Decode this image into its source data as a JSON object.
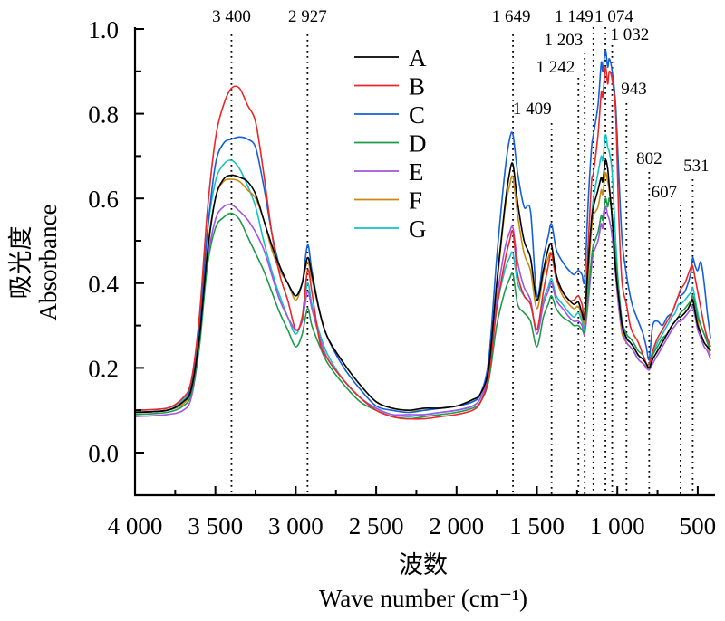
{
  "chart_data": {
    "type": "line",
    "title": "",
    "xlabel_cn": "波数",
    "xlabel": "Wave number (cm⁻¹)",
    "ylabel_cn": "吸光度",
    "ylabel": "Absorbance",
    "xlim": [
      4000,
      410
    ],
    "x_reversed": true,
    "ylim": [
      -0.1,
      1.0
    ],
    "x_ticks": [
      4000,
      3500,
      3000,
      2500,
      2000,
      1500,
      1000,
      500
    ],
    "x_tick_labels": [
      "4 000",
      "3 500",
      "3 000",
      "2 500",
      "2 000",
      "1 500",
      "1 000",
      "500"
    ],
    "y_ticks": [
      0.0,
      0.2,
      0.4,
      0.6,
      0.8,
      1.0
    ],
    "y_tick_labels": [
      "0.0",
      "0.2",
      "0.4",
      "0.6",
      "0.8",
      "1.0"
    ],
    "grid": false,
    "legend_position": "top-center",
    "reference_lines": [
      {
        "x": 3400,
        "label": "3 400"
      },
      {
        "x": 2927,
        "label": "2 927"
      },
      {
        "x": 1649,
        "label": "1 649"
      },
      {
        "x": 1409,
        "label": "1 409"
      },
      {
        "x": 1242,
        "label": "1 242"
      },
      {
        "x": 1203,
        "label": "1 203"
      },
      {
        "x": 1149,
        "label": "1 149"
      },
      {
        "x": 1074,
        "label": "1 074"
      },
      {
        "x": 1032,
        "label": "1 032"
      },
      {
        "x": 943,
        "label": "943"
      },
      {
        "x": 802,
        "label": "802"
      },
      {
        "x": 607,
        "label": "607"
      },
      {
        "x": 531,
        "label": "531"
      }
    ],
    "x": [
      4000,
      3800,
      3700,
      3650,
      3600,
      3550,
      3500,
      3450,
      3400,
      3350,
      3300,
      3250,
      3200,
      3150,
      3100,
      3050,
      3000,
      2960,
      2927,
      2900,
      2850,
      2800,
      2700,
      2600,
      2500,
      2400,
      2300,
      2200,
      2100,
      2000,
      1900,
      1850,
      1800,
      1750,
      1700,
      1670,
      1649,
      1620,
      1580,
      1540,
      1500,
      1460,
      1430,
      1409,
      1380,
      1340,
      1300,
      1270,
      1242,
      1220,
      1203,
      1180,
      1160,
      1149,
      1120,
      1100,
      1090,
      1074,
      1060,
      1050,
      1032,
      1010,
      990,
      970,
      943,
      920,
      900,
      870,
      840,
      820,
      802,
      780,
      750,
      720,
      690,
      660,
      640,
      620,
      607,
      580,
      560,
      540,
      531,
      515,
      500,
      480,
      460,
      440,
      420
    ],
    "series": [
      {
        "name": "A",
        "color": "#000000",
        "values": [
          0.095,
          0.1,
          0.12,
          0.15,
          0.27,
          0.47,
          0.6,
          0.645,
          0.655,
          0.65,
          0.64,
          0.61,
          0.55,
          0.49,
          0.44,
          0.4,
          0.37,
          0.4,
          0.46,
          0.42,
          0.33,
          0.27,
          0.21,
          0.16,
          0.12,
          0.105,
          0.1,
          0.105,
          0.105,
          0.11,
          0.125,
          0.14,
          0.2,
          0.4,
          0.58,
          0.66,
          0.68,
          0.59,
          0.5,
          0.46,
          0.36,
          0.43,
          0.48,
          0.49,
          0.42,
          0.38,
          0.36,
          0.35,
          0.355,
          0.33,
          0.32,
          0.45,
          0.55,
          0.58,
          0.62,
          0.65,
          0.64,
          0.69,
          0.67,
          0.63,
          0.55,
          0.43,
          0.36,
          0.3,
          0.27,
          0.26,
          0.25,
          0.23,
          0.22,
          0.21,
          0.2,
          0.22,
          0.24,
          0.26,
          0.28,
          0.3,
          0.31,
          0.32,
          0.32,
          0.33,
          0.34,
          0.355,
          0.36,
          0.33,
          0.3,
          0.28,
          0.26,
          0.25,
          0.24
        ]
      },
      {
        "name": "B",
        "color": "#e8272a",
        "values": [
          0.1,
          0.105,
          0.13,
          0.17,
          0.32,
          0.57,
          0.74,
          0.82,
          0.86,
          0.86,
          0.82,
          0.78,
          0.66,
          0.52,
          0.42,
          0.36,
          0.29,
          0.32,
          0.43,
          0.38,
          0.26,
          0.22,
          0.17,
          0.13,
          0.1,
          0.085,
          0.08,
          0.08,
          0.085,
          0.09,
          0.1,
          0.12,
          0.18,
          0.34,
          0.45,
          0.5,
          0.52,
          0.42,
          0.37,
          0.35,
          0.29,
          0.38,
          0.44,
          0.47,
          0.41,
          0.38,
          0.36,
          0.36,
          0.37,
          0.35,
          0.33,
          0.5,
          0.64,
          0.66,
          0.75,
          0.85,
          0.84,
          0.91,
          0.87,
          0.9,
          0.88,
          0.8,
          0.55,
          0.4,
          0.35,
          0.3,
          0.28,
          0.26,
          0.23,
          0.21,
          0.21,
          0.24,
          0.27,
          0.29,
          0.31,
          0.33,
          0.35,
          0.37,
          0.385,
          0.4,
          0.42,
          0.44,
          0.44,
          0.41,
          0.38,
          0.34,
          0.3,
          0.27,
          0.25
        ]
      },
      {
        "name": "C",
        "color": "#1560d4",
        "values": [
          0.095,
          0.1,
          0.12,
          0.16,
          0.29,
          0.52,
          0.68,
          0.73,
          0.74,
          0.745,
          0.74,
          0.72,
          0.63,
          0.52,
          0.44,
          0.4,
          0.37,
          0.4,
          0.49,
          0.43,
          0.33,
          0.27,
          0.2,
          0.15,
          0.11,
          0.1,
          0.095,
          0.1,
          0.105,
          0.11,
          0.12,
          0.14,
          0.22,
          0.46,
          0.66,
          0.74,
          0.75,
          0.66,
          0.58,
          0.57,
          0.37,
          0.46,
          0.51,
          0.54,
          0.48,
          0.45,
          0.43,
          0.42,
          0.43,
          0.42,
          0.41,
          0.6,
          0.72,
          0.75,
          0.82,
          0.92,
          0.9,
          0.95,
          0.91,
          0.93,
          0.9,
          0.82,
          0.65,
          0.5,
          0.42,
          0.37,
          0.34,
          0.31,
          0.28,
          0.25,
          0.22,
          0.3,
          0.31,
          0.3,
          0.32,
          0.33,
          0.35,
          0.37,
          0.37,
          0.38,
          0.4,
          0.43,
          0.46,
          0.44,
          0.43,
          0.45,
          0.4,
          0.33,
          0.27
        ]
      },
      {
        "name": "D",
        "color": "#1e9a4c",
        "values": [
          0.09,
          0.095,
          0.11,
          0.14,
          0.25,
          0.44,
          0.53,
          0.555,
          0.565,
          0.55,
          0.51,
          0.47,
          0.43,
          0.38,
          0.33,
          0.29,
          0.25,
          0.28,
          0.34,
          0.3,
          0.25,
          0.21,
          0.16,
          0.12,
          0.1,
          0.085,
          0.08,
          0.085,
          0.09,
          0.095,
          0.105,
          0.12,
          0.17,
          0.3,
          0.38,
          0.41,
          0.42,
          0.35,
          0.33,
          0.31,
          0.25,
          0.32,
          0.35,
          0.37,
          0.34,
          0.32,
          0.31,
          0.3,
          0.3,
          0.29,
          0.29,
          0.38,
          0.46,
          0.49,
          0.52,
          0.56,
          0.55,
          0.6,
          0.58,
          0.6,
          0.56,
          0.46,
          0.38,
          0.31,
          0.28,
          0.27,
          0.26,
          0.24,
          0.23,
          0.21,
          0.2,
          0.23,
          0.25,
          0.27,
          0.28,
          0.3,
          0.31,
          0.32,
          0.33,
          0.34,
          0.35,
          0.36,
          0.37,
          0.35,
          0.32,
          0.3,
          0.28,
          0.26,
          0.24
        ]
      },
      {
        "name": "E",
        "color": "#a255e0",
        "values": [
          0.085,
          0.09,
          0.1,
          0.13,
          0.25,
          0.45,
          0.55,
          0.58,
          0.585,
          0.57,
          0.55,
          0.52,
          0.48,
          0.42,
          0.36,
          0.32,
          0.29,
          0.31,
          0.38,
          0.34,
          0.27,
          0.22,
          0.17,
          0.13,
          0.105,
          0.09,
          0.09,
          0.09,
          0.095,
          0.1,
          0.11,
          0.13,
          0.19,
          0.36,
          0.48,
          0.52,
          0.53,
          0.45,
          0.39,
          0.36,
          0.28,
          0.35,
          0.38,
          0.4,
          0.36,
          0.34,
          0.32,
          0.31,
          0.31,
          0.3,
          0.28,
          0.36,
          0.44,
          0.47,
          0.5,
          0.54,
          0.53,
          0.58,
          0.56,
          0.55,
          0.51,
          0.42,
          0.34,
          0.29,
          0.26,
          0.25,
          0.24,
          0.22,
          0.21,
          0.2,
          0.195,
          0.21,
          0.23,
          0.25,
          0.27,
          0.29,
          0.3,
          0.31,
          0.31,
          0.32,
          0.33,
          0.34,
          0.345,
          0.32,
          0.29,
          0.27,
          0.25,
          0.24,
          0.22
        ]
      },
      {
        "name": "F",
        "color": "#c68a12",
        "values": [
          0.095,
          0.1,
          0.115,
          0.15,
          0.27,
          0.48,
          0.6,
          0.64,
          0.645,
          0.64,
          0.62,
          0.6,
          0.55,
          0.48,
          0.43,
          0.4,
          0.36,
          0.4,
          0.45,
          0.41,
          0.33,
          0.27,
          0.21,
          0.16,
          0.12,
          0.105,
          0.1,
          0.1,
          0.105,
          0.11,
          0.12,
          0.14,
          0.2,
          0.39,
          0.57,
          0.63,
          0.65,
          0.56,
          0.47,
          0.43,
          0.34,
          0.42,
          0.46,
          0.47,
          0.41,
          0.37,
          0.35,
          0.34,
          0.345,
          0.32,
          0.31,
          0.43,
          0.53,
          0.56,
          0.58,
          0.62,
          0.61,
          0.66,
          0.64,
          0.62,
          0.56,
          0.42,
          0.34,
          0.28,
          0.26,
          0.25,
          0.24,
          0.22,
          0.21,
          0.205,
          0.2,
          0.22,
          0.24,
          0.26,
          0.28,
          0.3,
          0.31,
          0.32,
          0.32,
          0.33,
          0.34,
          0.36,
          0.37,
          0.34,
          0.31,
          0.28,
          0.26,
          0.25,
          0.23
        ]
      },
      {
        "name": "G",
        "color": "#16c0c4",
        "values": [
          0.1,
          0.105,
          0.125,
          0.17,
          0.29,
          0.52,
          0.64,
          0.68,
          0.69,
          0.67,
          0.63,
          0.58,
          0.5,
          0.43,
          0.37,
          0.32,
          0.28,
          0.32,
          0.4,
          0.35,
          0.28,
          0.23,
          0.17,
          0.13,
          0.105,
          0.09,
          0.085,
          0.09,
          0.095,
          0.1,
          0.11,
          0.13,
          0.19,
          0.34,
          0.43,
          0.46,
          0.47,
          0.4,
          0.37,
          0.35,
          0.29,
          0.36,
          0.39,
          0.41,
          0.37,
          0.35,
          0.33,
          0.32,
          0.33,
          0.31,
          0.3,
          0.42,
          0.55,
          0.6,
          0.66,
          0.7,
          0.69,
          0.75,
          0.72,
          0.71,
          0.66,
          0.5,
          0.38,
          0.31,
          0.27,
          0.26,
          0.25,
          0.23,
          0.22,
          0.21,
          0.2,
          0.23,
          0.26,
          0.28,
          0.3,
          0.32,
          0.33,
          0.35,
          0.35,
          0.36,
          0.37,
          0.38,
          0.39,
          0.36,
          0.33,
          0.3,
          0.28,
          0.27,
          0.25
        ]
      }
    ]
  }
}
